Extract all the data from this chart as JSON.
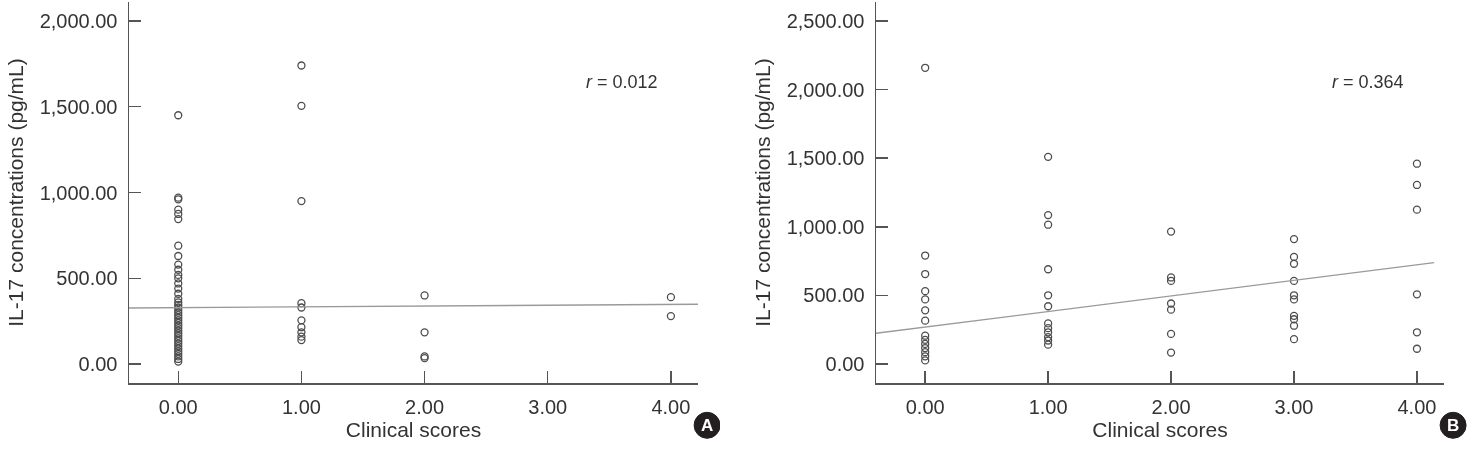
{
  "chart_data": [
    {
      "type": "scatter",
      "xlabel": "Clinical scores",
      "ylabel": "IL-17 concentrations (pg/mL)",
      "xlim": [
        -0.4,
        4.22
      ],
      "xticks": [
        {
          "value": 0,
          "label": "0.00"
        },
        {
          "value": 1,
          "label": "1.00"
        },
        {
          "value": 2,
          "label": "2.00"
        },
        {
          "value": 3,
          "label": "3.00"
        },
        {
          "value": 4,
          "label": "4.00"
        }
      ],
      "ylim": [
        -110,
        2110
      ],
      "yticks": [
        {
          "value": 0,
          "label": "0.00"
        },
        {
          "value": 500,
          "label": "500.00"
        },
        {
          "value": 1000,
          "label": "1,000.00"
        },
        {
          "value": 1500,
          "label": "1,500.00"
        },
        {
          "value": 2000,
          "label": "2,000.00"
        }
      ],
      "series": [
        {
          "type": "scatter",
          "color": "#4d4d4d",
          "marker": "circle",
          "x": [
            0,
            0,
            0,
            0,
            0,
            0,
            0,
            0,
            0,
            0,
            0,
            0,
            0,
            0,
            0,
            0,
            0,
            0,
            0,
            0,
            0,
            0,
            0,
            0,
            0,
            0,
            0,
            0,
            0,
            0,
            0,
            0,
            0,
            0,
            0,
            0,
            0,
            0,
            0,
            0,
            1,
            1,
            1,
            1,
            1,
            1,
            1,
            1,
            1,
            1,
            2,
            2,
            2,
            2,
            4,
            4
          ],
          "values": [
            1450,
            970,
            960,
            900,
            875,
            845,
            690,
            630,
            580,
            550,
            520,
            500,
            470,
            440,
            410,
            380,
            360,
            345,
            330,
            315,
            300,
            285,
            270,
            255,
            240,
            225,
            210,
            195,
            180,
            165,
            150,
            135,
            120,
            105,
            90,
            75,
            60,
            45,
            30,
            15,
            1740,
            1505,
            950,
            355,
            330,
            255,
            215,
            185,
            160,
            140,
            400,
            185,
            45,
            35,
            390,
            280
          ]
        },
        {
          "type": "line",
          "color": "#9a9a9a",
          "x": [
            -0.4,
            4.22
          ],
          "values": [
            327,
            349
          ]
        }
      ],
      "annotations": [
        "r = 0.012",
        "A"
      ]
    },
    {
      "type": "scatter",
      "xlabel": "Clinical scores",
      "ylabel": "IL-17 concentrations (pg/mL)",
      "xlim": [
        -0.4,
        4.22
      ],
      "xticks": [
        {
          "value": 0,
          "label": "0.00"
        },
        {
          "value": 1,
          "label": "1.00"
        },
        {
          "value": 2,
          "label": "2.00"
        },
        {
          "value": 3,
          "label": "3.00"
        },
        {
          "value": 4,
          "label": "4.00"
        }
      ],
      "ylim": [
        -140,
        2640
      ],
      "yticks": [
        {
          "value": 0,
          "label": "0.00"
        },
        {
          "value": 500,
          "label": "500.00"
        },
        {
          "value": 1000,
          "label": "1,000.00"
        },
        {
          "value": 1500,
          "label": "1,500.00"
        },
        {
          "value": 2000,
          "label": "2,000.00"
        },
        {
          "value": 2500,
          "label": "2,500.00"
        }
      ],
      "series": [
        {
          "type": "scatter",
          "color": "#4d4d4d",
          "marker": "circle",
          "x": [
            0,
            0,
            0,
            0,
            0,
            0,
            0,
            0,
            0,
            0,
            0,
            0,
            0,
            0,
            1,
            1,
            1,
            1,
            1,
            1,
            1,
            1,
            1,
            1,
            1,
            1,
            2,
            2,
            2,
            2,
            2,
            2,
            2,
            3,
            3,
            3,
            3,
            3,
            3,
            3,
            3,
            3,
            3,
            4,
            4,
            4,
            4,
            4,
            4
          ],
          "values": [
            2160,
            790,
            655,
            530,
            470,
            390,
            315,
            205,
            175,
            145,
            115,
            85,
            55,
            25,
            1510,
            1085,
            1015,
            690,
            500,
            420,
            295,
            260,
            230,
            195,
            170,
            140,
            965,
            630,
            605,
            440,
            395,
            218,
            82,
            910,
            780,
            730,
            605,
            500,
            470,
            350,
            325,
            278,
            180,
            1460,
            1305,
            1125,
            507,
            230,
            110
          ]
        },
        {
          "type": "line",
          "color": "#9a9a9a",
          "x": [
            -0.4,
            4.14
          ],
          "values": [
            223,
            738
          ]
        }
      ],
      "annotations": [
        "r = 0.364",
        "B"
      ]
    }
  ]
}
